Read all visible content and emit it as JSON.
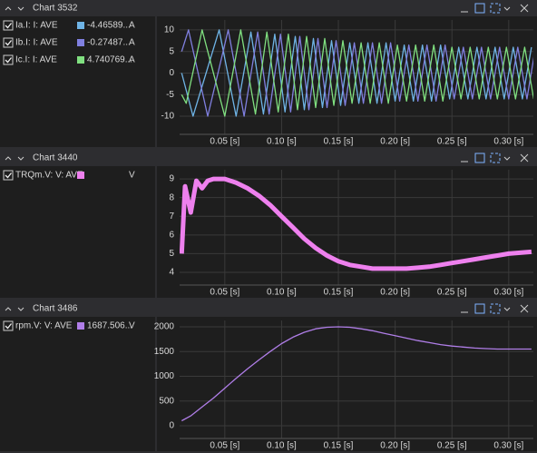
{
  "chart_data": [
    {
      "type": "line",
      "title": "Chart 3532",
      "xlim": [
        0.0102,
        0.3217
      ],
      "ylim": [
        -14.2,
        12.3
      ],
      "xticks": [
        {
          "value": 0.05,
          "label": "0.05 [s]"
        },
        {
          "value": 0.1,
          "label": "0.10 [s]"
        },
        {
          "value": 0.15,
          "label": "0.15 [s]"
        },
        {
          "value": 0.2,
          "label": "0.20 [s]"
        },
        {
          "value": 0.25,
          "label": "0.25 [s]"
        },
        {
          "value": 0.3,
          "label": "0.30 [s]"
        }
      ],
      "yticks": [
        -10,
        -5,
        0,
        5,
        10
      ],
      "grid": true,
      "series": [
        {
          "name": "Ia.I: I: AVE",
          "color": "#6fb4e6",
          "readout": "-4.46589...",
          "unit": "A",
          "x": [
            0.012,
            0.022,
            0.045,
            0.06,
            0.073,
            0.084,
            0.094,
            0.103,
            0.112,
            0.12,
            0.128,
            0.136,
            0.144,
            0.152,
            0.16,
            0.168,
            0.176,
            0.184,
            0.192,
            0.2,
            0.208,
            0.216,
            0.224,
            0.232,
            0.24,
            0.248,
            0.256,
            0.264,
            0.272,
            0.28,
            0.288,
            0.296,
            0.304,
            0.312,
            0.32
          ],
          "values": [
            0,
            -10,
            10,
            -10,
            9.5,
            -9.5,
            9,
            -9,
            8.5,
            -8.5,
            8,
            -8,
            7.5,
            -7.5,
            7,
            -7,
            7,
            -7,
            7,
            -6.5,
            6.5,
            -6.5,
            6.5,
            -6.5,
            6.5,
            -6,
            6,
            -6,
            6,
            -6,
            6,
            -6,
            6,
            -6,
            6
          ]
        },
        {
          "name": "Ib.I: I: AVE",
          "color": "#8080e0",
          "readout": "-0.27487...",
          "unit": "A",
          "x": [
            0.012,
            0.018,
            0.035,
            0.053,
            0.067,
            0.079,
            0.089,
            0.099,
            0.108,
            0.116,
            0.124,
            0.132,
            0.14,
            0.148,
            0.156,
            0.164,
            0.172,
            0.18,
            0.188,
            0.196,
            0.204,
            0.212,
            0.22,
            0.228,
            0.236,
            0.244,
            0.252,
            0.26,
            0.268,
            0.276,
            0.284,
            0.292,
            0.3,
            0.308,
            0.316,
            0.323
          ],
          "values": [
            5,
            10,
            -10,
            10,
            -10,
            9.5,
            -9.5,
            9,
            -9,
            8.5,
            -8.5,
            8,
            -8,
            7.5,
            -7.5,
            7,
            -7,
            7,
            -7,
            7,
            -6.5,
            6.5,
            -6.5,
            6.5,
            -6.5,
            6.5,
            -6,
            6,
            -6,
            6,
            -6,
            6,
            -6,
            6,
            -6,
            5
          ]
        },
        {
          "name": "Ic.I: I: AVE",
          "color": "#80e080",
          "readout": "4.740769...",
          "unit": "A",
          "x": [
            0.012,
            0.016,
            0.03,
            0.05,
            0.064,
            0.077,
            0.087,
            0.097,
            0.106,
            0.114,
            0.122,
            0.13,
            0.138,
            0.146,
            0.154,
            0.162,
            0.17,
            0.178,
            0.186,
            0.194,
            0.202,
            0.21,
            0.218,
            0.226,
            0.234,
            0.242,
            0.25,
            0.258,
            0.266,
            0.274,
            0.282,
            0.29,
            0.298,
            0.306,
            0.314,
            0.322
          ],
          "values": [
            -5,
            -7,
            10,
            -10,
            10,
            -9.5,
            9.5,
            -9,
            9,
            -8.5,
            8.5,
            -8,
            8,
            -7.5,
            7.5,
            -7,
            7,
            -7,
            7,
            -7,
            6.5,
            -6.5,
            6.5,
            -6.5,
            6.5,
            -6.5,
            6,
            -6,
            6,
            -6,
            6,
            -6,
            6,
            -6,
            6,
            -6
          ]
        }
      ]
    },
    {
      "type": "line",
      "title": "Chart 3440",
      "xlim": [
        0.0102,
        0.3217
      ],
      "ylim": [
        3.32,
        9.49
      ],
      "xticks": [
        {
          "value": 0.05,
          "label": "0.05 [s]"
        },
        {
          "value": 0.1,
          "label": "0.10 [s]"
        },
        {
          "value": 0.15,
          "label": "0.15 [s]"
        },
        {
          "value": 0.2,
          "label": "0.20 [s]"
        },
        {
          "value": 0.25,
          "label": "0.25 [s]"
        },
        {
          "value": 0.3,
          "label": "0.30 [s]"
        }
      ],
      "yticks": [
        4,
        5,
        6,
        7,
        8,
        9
      ],
      "grid": true,
      "x": [
        0.012,
        0.015,
        0.02,
        0.025,
        0.03,
        0.035,
        0.04,
        0.05,
        0.06,
        0.07,
        0.08,
        0.09,
        0.1,
        0.11,
        0.12,
        0.13,
        0.14,
        0.15,
        0.16,
        0.17,
        0.18,
        0.19,
        0.2,
        0.21,
        0.22,
        0.23,
        0.24,
        0.25,
        0.26,
        0.27,
        0.28,
        0.29,
        0.3,
        0.31,
        0.32
      ],
      "series": [
        {
          "name": "TRQm.V: V: AVE",
          "color": "#ee80ee",
          "unit": "V",
          "values": [
            5,
            8.6,
            7.2,
            8.9,
            8.5,
            8.9,
            9,
            9,
            8.8,
            8.5,
            8.1,
            7.6,
            7,
            6.4,
            5.8,
            5.3,
            4.9,
            4.6,
            4.4,
            4.3,
            4.2,
            4.2,
            4.2,
            4.2,
            4.25,
            4.3,
            4.4,
            4.5,
            4.6,
            4.7,
            4.8,
            4.9,
            5,
            5.05,
            5.1
          ]
        }
      ]
    },
    {
      "type": "line",
      "title": "Chart 3486",
      "xlim": [
        0.0102,
        0.3217
      ],
      "ylim": [
        -257,
        2128
      ],
      "xticks": [
        {
          "value": 0.05,
          "label": "0.05 [s]"
        },
        {
          "value": 0.1,
          "label": "0.10 [s]"
        },
        {
          "value": 0.15,
          "label": "0.15 [s]"
        },
        {
          "value": 0.2,
          "label": "0.20 [s]"
        },
        {
          "value": 0.25,
          "label": "0.25 [s]"
        },
        {
          "value": 0.3,
          "label": "0.30 [s]"
        }
      ],
      "yticks": [
        0,
        500,
        1000,
        1500,
        2000
      ],
      "grid": true,
      "x": [
        0.012,
        0.02,
        0.03,
        0.04,
        0.05,
        0.06,
        0.07,
        0.08,
        0.09,
        0.1,
        0.11,
        0.12,
        0.13,
        0.14,
        0.15,
        0.16,
        0.17,
        0.18,
        0.19,
        0.2,
        0.21,
        0.22,
        0.23,
        0.24,
        0.25,
        0.26,
        0.27,
        0.28,
        0.29,
        0.3,
        0.31,
        0.32
      ],
      "series": [
        {
          "name": "rpm.V: V: AVE",
          "color": "#b07ee8",
          "readout": "1687.506...",
          "unit": "V",
          "values": [
            100,
            200,
            380,
            560,
            760,
            960,
            1150,
            1330,
            1500,
            1660,
            1790,
            1890,
            1960,
            1990,
            2000,
            1990,
            1960,
            1920,
            1870,
            1820,
            1770,
            1720,
            1680,
            1640,
            1610,
            1590,
            1570,
            1560,
            1550,
            1550,
            1550,
            1550
          ]
        }
      ]
    }
  ]
}
